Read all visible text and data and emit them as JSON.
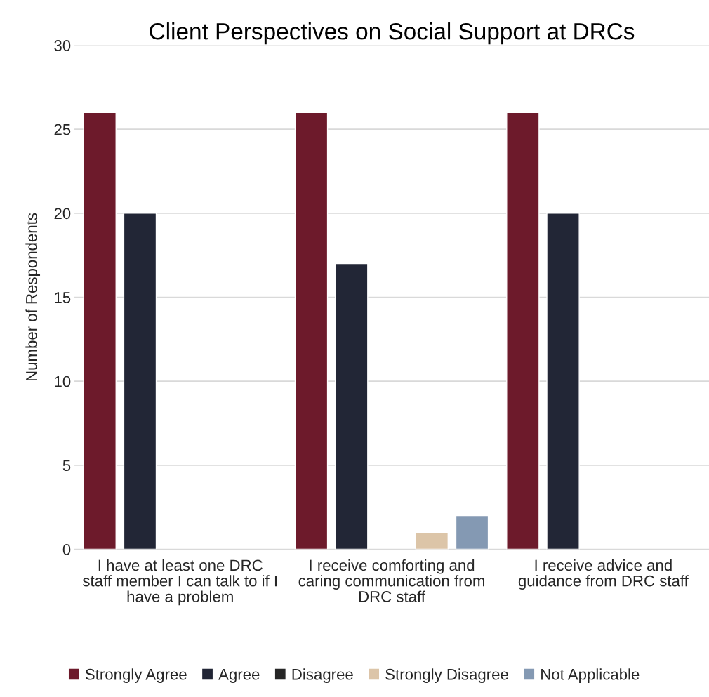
{
  "chart_data": {
    "type": "bar",
    "title": "Client Perspectives on Social Support at DRCs",
    "ylabel": "Number of Respondents",
    "categories": [
      "I have at least one DRC staff member I can talk to if I have a problem",
      "I receive comforting and caring communication from DRC staff",
      "I receive advice and guidance from DRC staff"
    ],
    "series": [
      {
        "name": "Strongly Agree",
        "color": "#6d1a2b",
        "values": [
          26,
          26,
          26
        ]
      },
      {
        "name": "Agree",
        "color": "#222636",
        "values": [
          20,
          17,
          20
        ]
      },
      {
        "name": "Disagree",
        "color": "#262626",
        "values": [
          0,
          0,
          0
        ]
      },
      {
        "name": "Strongly Disagree",
        "color": "#dcc5a8",
        "values": [
          0,
          1,
          0
        ]
      },
      {
        "name": "Not Applicable",
        "color": "#8499b3",
        "values": [
          0,
          2,
          0
        ]
      }
    ],
    "ylim": [
      0,
      30
    ],
    "yticks": [
      0,
      5,
      10,
      15,
      20,
      25,
      30
    ],
    "grid": "y",
    "legend": "bottom"
  }
}
